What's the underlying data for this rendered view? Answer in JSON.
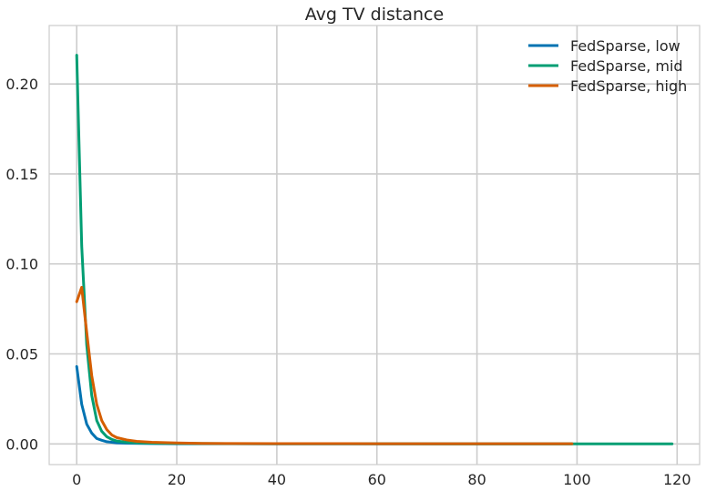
{
  "chart_data": {
    "type": "line",
    "title": "Avg TV distance",
    "xlabel": "",
    "ylabel": "",
    "xlim": [
      -5.5,
      124.5
    ],
    "ylim": [
      -0.0115,
      0.2325
    ],
    "x_ticks": [
      0,
      20,
      40,
      60,
      80,
      100,
      120
    ],
    "y_ticks": [
      0.0,
      0.05,
      0.1,
      0.15,
      0.2
    ],
    "x_tick_labels": [
      "0",
      "20",
      "40",
      "60",
      "80",
      "100",
      "120"
    ],
    "y_tick_labels": [
      "0.00",
      "0.05",
      "0.10",
      "0.15",
      "0.20"
    ],
    "grid": true,
    "legend_position": "top-right",
    "series": [
      {
        "name": "FedSparse, low",
        "color": "#0173b2",
        "points": [
          [
            0,
            0.043
          ],
          [
            1,
            0.022
          ],
          [
            2,
            0.011
          ],
          [
            3,
            0.006
          ],
          [
            4,
            0.003
          ],
          [
            5,
            0.002
          ],
          [
            6,
            0.0012
          ],
          [
            8,
            0.0006
          ],
          [
            10,
            0.0004
          ],
          [
            15,
            0.0002
          ],
          [
            20,
            0.0001
          ],
          [
            30,
            5e-05
          ],
          [
            40,
            3e-05
          ],
          [
            60,
            2e-05
          ],
          [
            80,
            1e-05
          ],
          [
            99,
            1e-05
          ]
        ]
      },
      {
        "name": "FedSparse, mid",
        "color": "#029e73",
        "points": [
          [
            0,
            0.216
          ],
          [
            1,
            0.11
          ],
          [
            2,
            0.055
          ],
          [
            3,
            0.027
          ],
          [
            4,
            0.013
          ],
          [
            5,
            0.007
          ],
          [
            6,
            0.004
          ],
          [
            7,
            0.0025
          ],
          [
            8,
            0.0016
          ],
          [
            10,
            0.0009
          ],
          [
            12,
            0.0006
          ],
          [
            15,
            0.0004
          ],
          [
            20,
            0.00025
          ],
          [
            30,
            0.00012
          ],
          [
            40,
            8e-05
          ],
          [
            60,
            5e-05
          ],
          [
            80,
            3e-05
          ],
          [
            100,
            2e-05
          ],
          [
            119,
            1e-05
          ]
        ]
      },
      {
        "name": "FedSparse, high",
        "color": "#d55e00",
        "points": [
          [
            0,
            0.079
          ],
          [
            1,
            0.087
          ],
          [
            2,
            0.062
          ],
          [
            3,
            0.038
          ],
          [
            4,
            0.022
          ],
          [
            5,
            0.013
          ],
          [
            6,
            0.008
          ],
          [
            7,
            0.005
          ],
          [
            8,
            0.0035
          ],
          [
            10,
            0.0022
          ],
          [
            12,
            0.0014
          ],
          [
            15,
            0.0009
          ],
          [
            20,
            0.0005
          ],
          [
            25,
            0.0003
          ],
          [
            30,
            0.0002
          ],
          [
            40,
            0.00015
          ],
          [
            60,
            0.0001
          ],
          [
            80,
            7e-05
          ],
          [
            99,
            5e-05
          ]
        ]
      }
    ]
  }
}
